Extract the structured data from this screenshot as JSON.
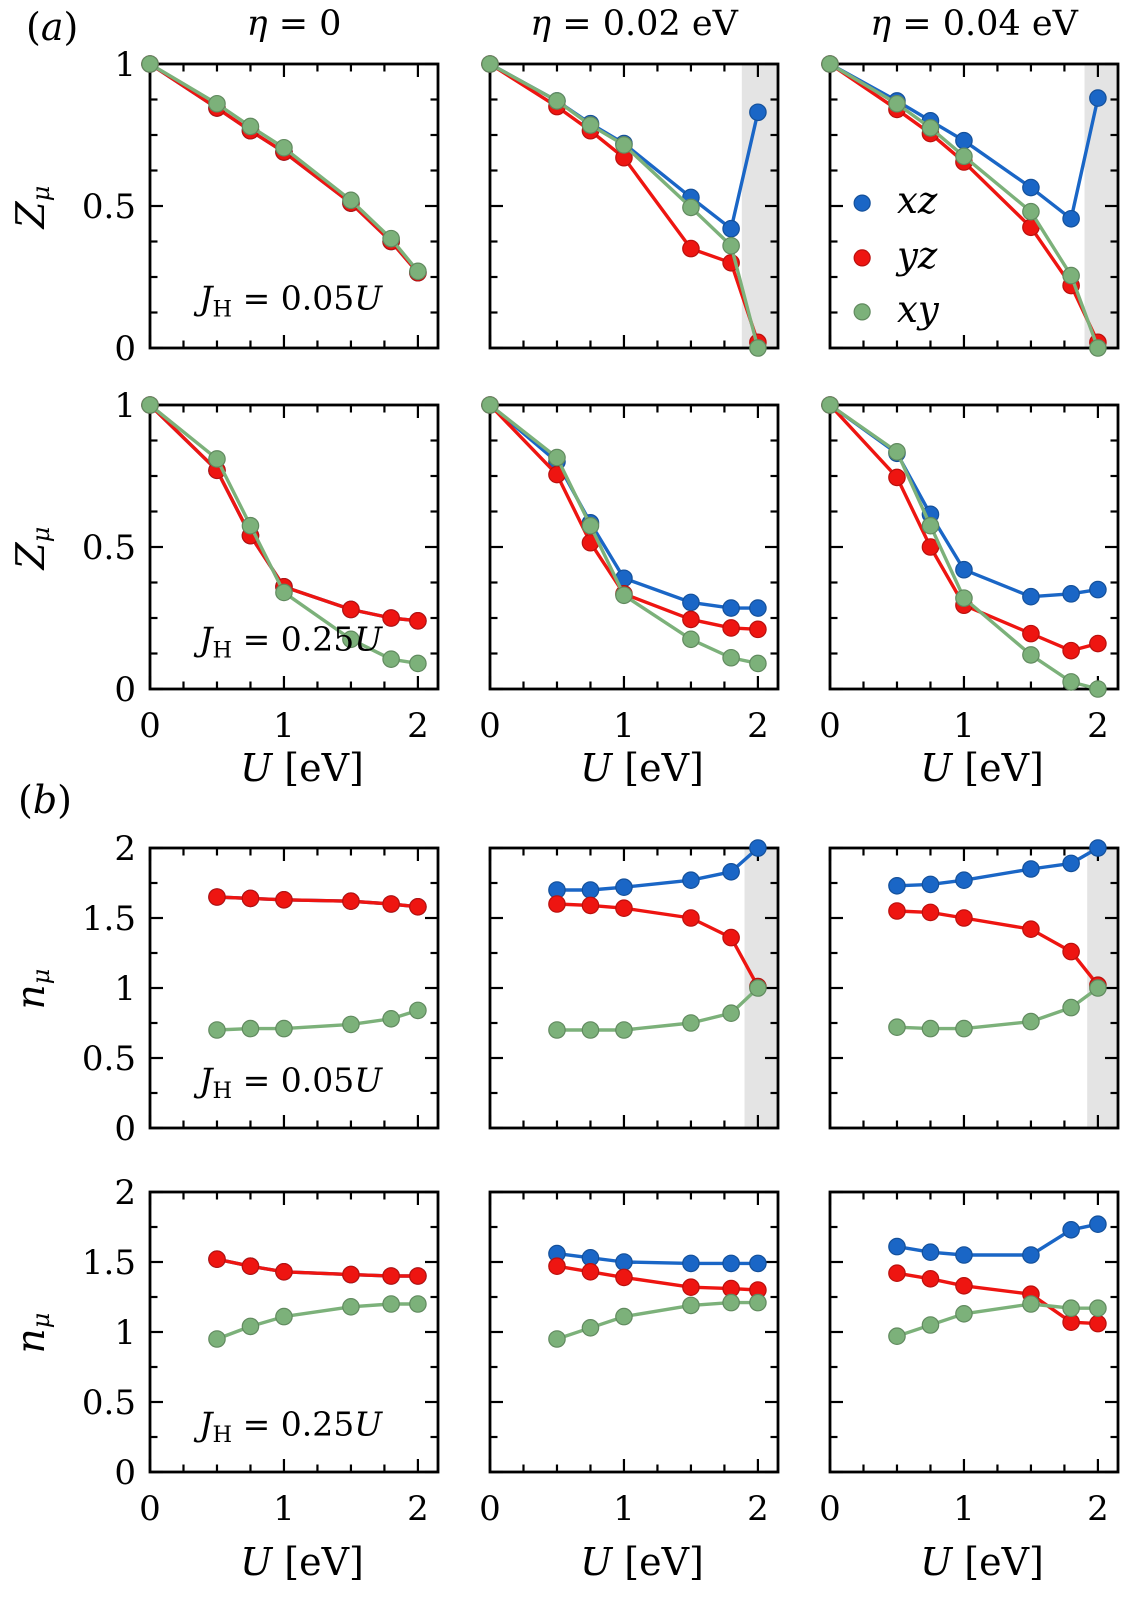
{
  "figure": {
    "panel_labels": {
      "a": "(a)",
      "b": "(b)"
    },
    "column_titles": [
      "η = 0",
      "η = 0.02 eV",
      "η = 0.04 eV"
    ],
    "x_axis_label": "U [eV]",
    "y_axis_labels": {
      "a": "Z_μ",
      "b": "n_μ"
    },
    "annotations": {
      "jh_low": "J_H = 0.05U",
      "jh_high": "J_H = 0.25U"
    }
  },
  "legend": {
    "position": "inside top-right panel (a, η = 0.04 eV)",
    "items": [
      {
        "id": "xz",
        "label": "xz",
        "color": "#1a66c6"
      },
      {
        "id": "yz",
        "label": "yz",
        "color": "#ee1511"
      },
      {
        "id": "xy",
        "label": "xy",
        "color": "#7cb17a"
      }
    ]
  },
  "colors": {
    "xz": "#1a66c6",
    "yz": "#ee1511",
    "xy": "#7cb17a",
    "shade": "#e4e4e4",
    "axis": "#000000",
    "background": "#ffffff"
  },
  "axes": {
    "x": {
      "range": [
        0,
        2.15
      ],
      "minor_step": 0.25,
      "labeled": [
        {
          "v": 0,
          "label": "0"
        },
        {
          "v": 1,
          "label": "1"
        },
        {
          "v": 2,
          "label": "2"
        }
      ]
    },
    "y_a": {
      "range": [
        0,
        1
      ],
      "minor_step": 0.125,
      "labeled": [
        {
          "v": 0,
          "label": "0"
        },
        {
          "v": 0.5,
          "label": "0.5"
        },
        {
          "v": 1,
          "label": "1"
        }
      ]
    },
    "y_b": {
      "range": [
        0,
        2
      ],
      "minor_step": 0.25,
      "labeled": [
        {
          "v": 0,
          "label": "0"
        },
        {
          "v": 0.5,
          "label": "0.5"
        },
        {
          "v": 1,
          "label": "1"
        },
        {
          "v": 1.5,
          "label": "1.5"
        },
        {
          "v": 2,
          "label": "2"
        }
      ]
    }
  },
  "chart_data": {
    "type": "line",
    "x_values_a": [
      0,
      0.5,
      0.75,
      1,
      1.5,
      1.8,
      2
    ],
    "x_values_b": [
      0.5,
      0.75,
      1,
      1.5,
      1.8,
      2
    ],
    "panels": [
      {
        "id": "a1-eta0",
        "row": "a1",
        "col": 0,
        "eta": "0",
        "jh": "0.05U",
        "annotation": "J_H = 0.05U",
        "shade_from": null,
        "legend": false,
        "series": [
          {
            "name": "xz",
            "values": [
              1,
              0.845,
              0.765,
              0.69,
              0.51,
              0.375,
              0.265
            ]
          },
          {
            "name": "yz",
            "values": [
              1,
              0.845,
              0.765,
              0.69,
              0.51,
              0.375,
              0.265
            ]
          },
          {
            "name": "xy",
            "values": [
              1,
              0.86,
              0.78,
              0.705,
              0.52,
              0.385,
              0.27
            ]
          }
        ]
      },
      {
        "id": "a1-eta002",
        "row": "a1",
        "col": 1,
        "eta": "0.02 eV",
        "jh": "0.05U",
        "annotation": null,
        "shade_from": 1.88,
        "legend": false,
        "series": [
          {
            "name": "xz",
            "values": [
              1,
              0.87,
              0.79,
              0.72,
              0.53,
              0.42,
              0.83
            ]
          },
          {
            "name": "yz",
            "values": [
              1,
              0.85,
              0.765,
              0.67,
              0.35,
              0.3,
              0.02
            ]
          },
          {
            "name": "xy",
            "values": [
              1,
              0.87,
              0.785,
              0.715,
              0.495,
              0.36,
              0.0
            ]
          }
        ]
      },
      {
        "id": "a1-eta004",
        "row": "a1",
        "col": 2,
        "eta": "0.04 eV",
        "jh": "0.05U",
        "annotation": null,
        "shade_from": 1.9,
        "legend": true,
        "series": [
          {
            "name": "xz",
            "values": [
              1,
              0.87,
              0.8,
              0.73,
              0.565,
              0.455,
              0.88
            ]
          },
          {
            "name": "yz",
            "values": [
              1,
              0.84,
              0.755,
              0.655,
              0.425,
              0.22,
              0.02
            ]
          },
          {
            "name": "xy",
            "values": [
              1,
              0.86,
              0.775,
              0.675,
              0.48,
              0.255,
              0.0
            ]
          }
        ]
      },
      {
        "id": "a2-eta0",
        "row": "a2",
        "col": 0,
        "eta": "0",
        "jh": "0.25U",
        "annotation": "J_H = 0.25U",
        "shade_from": null,
        "legend": false,
        "series": [
          {
            "name": "xz",
            "values": [
              1,
              0.77,
              0.54,
              0.36,
              0.28,
              0.25,
              0.24
            ]
          },
          {
            "name": "yz",
            "values": [
              1,
              0.77,
              0.54,
              0.36,
              0.28,
              0.25,
              0.24
            ]
          },
          {
            "name": "xy",
            "values": [
              1,
              0.81,
              0.575,
              0.34,
              0.175,
              0.105,
              0.09
            ]
          }
        ]
      },
      {
        "id": "a2-eta002",
        "row": "a2",
        "col": 1,
        "eta": "0.02 eV",
        "jh": "0.25U",
        "annotation": null,
        "shade_from": null,
        "legend": false,
        "series": [
          {
            "name": "xz",
            "values": [
              1,
              0.8,
              0.585,
              0.39,
              0.305,
              0.285,
              0.285
            ]
          },
          {
            "name": "yz",
            "values": [
              1,
              0.755,
              0.515,
              0.335,
              0.245,
              0.215,
              0.21
            ]
          },
          {
            "name": "xy",
            "values": [
              1,
              0.815,
              0.575,
              0.33,
              0.175,
              0.11,
              0.09
            ]
          }
        ]
      },
      {
        "id": "a2-eta004",
        "row": "a2",
        "col": 2,
        "eta": "0.04 eV",
        "jh": "0.25U",
        "annotation": null,
        "shade_from": null,
        "legend": false,
        "series": [
          {
            "name": "xz",
            "values": [
              1,
              0.83,
              0.615,
              0.42,
              0.325,
              0.335,
              0.35
            ]
          },
          {
            "name": "yz",
            "values": [
              1,
              0.745,
              0.5,
              0.295,
              0.195,
              0.135,
              0.16
            ]
          },
          {
            "name": "xy",
            "values": [
              1,
              0.835,
              0.575,
              0.32,
              0.12,
              0.025,
              0.0
            ]
          }
        ]
      },
      {
        "id": "b1-eta0",
        "row": "b1",
        "col": 0,
        "eta": "0",
        "jh": "0.05U",
        "annotation": "J_H = 0.05U",
        "shade_from": null,
        "legend": false,
        "series": [
          {
            "name": "xz",
            "values": [
              1.65,
              1.64,
              1.63,
              1.62,
              1.6,
              1.58
            ]
          },
          {
            "name": "yz",
            "values": [
              1.65,
              1.64,
              1.63,
              1.62,
              1.6,
              1.58
            ]
          },
          {
            "name": "xy",
            "values": [
              0.7,
              0.71,
              0.71,
              0.74,
              0.78,
              0.84
            ]
          }
        ]
      },
      {
        "id": "b1-eta002",
        "row": "b1",
        "col": 1,
        "eta": "0.02 eV",
        "jh": "0.05U",
        "annotation": null,
        "shade_from": 1.9,
        "legend": false,
        "series": [
          {
            "name": "xz",
            "values": [
              1.7,
              1.7,
              1.72,
              1.77,
              1.83,
              2.0
            ]
          },
          {
            "name": "yz",
            "values": [
              1.6,
              1.59,
              1.57,
              1.5,
              1.36,
              1.01
            ]
          },
          {
            "name": "xy",
            "values": [
              0.7,
              0.7,
              0.7,
              0.75,
              0.82,
              1.0
            ]
          }
        ]
      },
      {
        "id": "b1-eta004",
        "row": "b1",
        "col": 2,
        "eta": "0.04 eV",
        "jh": "0.05U",
        "annotation": null,
        "shade_from": 1.92,
        "legend": false,
        "series": [
          {
            "name": "xz",
            "values": [
              1.73,
              1.74,
              1.77,
              1.85,
              1.89,
              2.0
            ]
          },
          {
            "name": "yz",
            "values": [
              1.55,
              1.54,
              1.5,
              1.42,
              1.26,
              1.02
            ]
          },
          {
            "name": "xy",
            "values": [
              0.72,
              0.71,
              0.71,
              0.76,
              0.86,
              1.0
            ]
          }
        ]
      },
      {
        "id": "b2-eta0",
        "row": "b2",
        "col": 0,
        "eta": "0",
        "jh": "0.25U",
        "annotation": "J_H = 0.25U",
        "shade_from": null,
        "legend": false,
        "series": [
          {
            "name": "xz",
            "values": [
              1.52,
              1.47,
              1.43,
              1.41,
              1.4,
              1.4
            ]
          },
          {
            "name": "yz",
            "values": [
              1.52,
              1.47,
              1.43,
              1.41,
              1.4,
              1.4
            ]
          },
          {
            "name": "xy",
            "values": [
              0.95,
              1.04,
              1.11,
              1.18,
              1.2,
              1.2
            ]
          }
        ]
      },
      {
        "id": "b2-eta002",
        "row": "b2",
        "col": 1,
        "eta": "0.02 eV",
        "jh": "0.25U",
        "annotation": null,
        "shade_from": null,
        "legend": false,
        "series": [
          {
            "name": "xz",
            "values": [
              1.56,
              1.53,
              1.5,
              1.49,
              1.49,
              1.49
            ]
          },
          {
            "name": "yz",
            "values": [
              1.47,
              1.43,
              1.39,
              1.32,
              1.31,
              1.3
            ]
          },
          {
            "name": "xy",
            "values": [
              0.95,
              1.03,
              1.11,
              1.19,
              1.21,
              1.21
            ]
          }
        ]
      },
      {
        "id": "b2-eta004",
        "row": "b2",
        "col": 2,
        "eta": "0.04 eV",
        "jh": "0.25U",
        "annotation": null,
        "shade_from": null,
        "legend": false,
        "series": [
          {
            "name": "xz",
            "values": [
              1.61,
              1.57,
              1.55,
              1.55,
              1.73,
              1.77
            ]
          },
          {
            "name": "yz",
            "values": [
              1.42,
              1.38,
              1.33,
              1.27,
              1.07,
              1.06
            ]
          },
          {
            "name": "xy",
            "values": [
              0.97,
              1.05,
              1.13,
              1.2,
              1.17,
              1.17
            ]
          }
        ]
      }
    ]
  }
}
